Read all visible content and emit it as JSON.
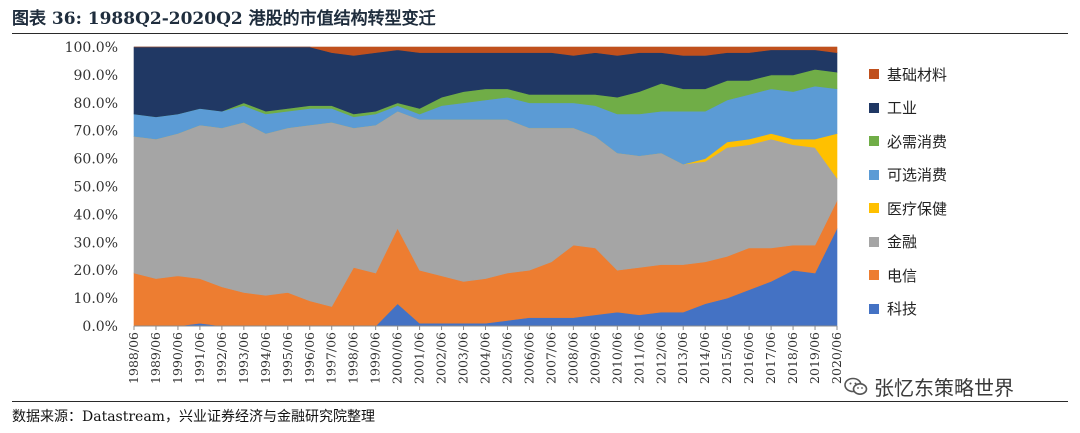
{
  "header": {
    "title": "图表 36:  1988Q2-2020Q2 港股的市值结构转型变迁"
  },
  "footer": {
    "source": "数据来源：Datastream，兴业证券经济与金融研究院整理"
  },
  "watermark": {
    "text": "张忆东策略世界",
    "icon": "wechat-icon"
  },
  "chart_data": {
    "type": "area",
    "stacked": true,
    "title": "1988Q2-2020Q2 港股的市值结构转型变迁",
    "ylim": [
      0,
      1
    ],
    "y_ticks": [
      "0.0%",
      "10.0%",
      "20.0%",
      "30.0%",
      "40.0%",
      "50.0%",
      "60.0%",
      "70.0%",
      "80.0%",
      "90.0%",
      "100.0%"
    ],
    "categories": [
      "1988/06",
      "1989/06",
      "1990/06",
      "1991/06",
      "1992/06",
      "1993/06",
      "1994/06",
      "1995/06",
      "1996/06",
      "1997/06",
      "1998/06",
      "1999/06",
      "2000/06",
      "2001/06",
      "2002/06",
      "2003/06",
      "2004/06",
      "2005/06",
      "2006/06",
      "2007/06",
      "2008/06",
      "2009/06",
      "2010/06",
      "2011/06",
      "2012/06",
      "2013/06",
      "2014/06",
      "2015/06",
      "2016/06",
      "2017/06",
      "2018/06",
      "2019/06",
      "2020/06"
    ],
    "legend_position": "right",
    "series": [
      {
        "name": "科技",
        "color": "#4472c4",
        "values": [
          0.0,
          0.0,
          0.0,
          0.01,
          0.0,
          0.0,
          0.0,
          0.0,
          0.0,
          0.0,
          0.0,
          0.0,
          0.08,
          0.01,
          0.01,
          0.01,
          0.01,
          0.02,
          0.03,
          0.03,
          0.03,
          0.04,
          0.05,
          0.04,
          0.05,
          0.05,
          0.08,
          0.1,
          0.13,
          0.16,
          0.2,
          0.19,
          0.35
        ]
      },
      {
        "name": "电信",
        "color": "#ed7d31",
        "values": [
          0.19,
          0.17,
          0.18,
          0.16,
          0.14,
          0.12,
          0.11,
          0.12,
          0.09,
          0.07,
          0.21,
          0.19,
          0.27,
          0.19,
          0.17,
          0.15,
          0.16,
          0.17,
          0.17,
          0.2,
          0.26,
          0.24,
          0.15,
          0.17,
          0.17,
          0.17,
          0.15,
          0.15,
          0.15,
          0.12,
          0.09,
          0.1,
          0.1
        ]
      },
      {
        "name": "金融",
        "color": "#a5a5a5",
        "values": [
          0.49,
          0.5,
          0.51,
          0.55,
          0.57,
          0.61,
          0.58,
          0.59,
          0.63,
          0.66,
          0.5,
          0.53,
          0.42,
          0.54,
          0.56,
          0.58,
          0.57,
          0.55,
          0.51,
          0.48,
          0.42,
          0.4,
          0.42,
          0.4,
          0.4,
          0.36,
          0.36,
          0.39,
          0.37,
          0.39,
          0.36,
          0.35,
          0.08
        ]
      },
      {
        "name": "医疗保健",
        "color": "#ffc000",
        "values": [
          0.0,
          0.0,
          0.0,
          0.0,
          0.0,
          0.0,
          0.0,
          0.0,
          0.0,
          0.0,
          0.0,
          0.0,
          0.0,
          0.0,
          0.0,
          0.0,
          0.0,
          0.0,
          0.0,
          0.0,
          0.0,
          0.0,
          0.0,
          0.0,
          0.0,
          0.0,
          0.01,
          0.02,
          0.02,
          0.02,
          0.02,
          0.03,
          0.16
        ]
      },
      {
        "name": "可选消费",
        "color": "#5b9bd5",
        "values": [
          0.08,
          0.08,
          0.07,
          0.06,
          0.06,
          0.06,
          0.07,
          0.06,
          0.06,
          0.05,
          0.04,
          0.04,
          0.02,
          0.02,
          0.05,
          0.06,
          0.07,
          0.08,
          0.09,
          0.09,
          0.09,
          0.11,
          0.14,
          0.15,
          0.15,
          0.19,
          0.17,
          0.15,
          0.16,
          0.16,
          0.17,
          0.19,
          0.16
        ]
      },
      {
        "name": "必需消费",
        "color": "#70ad47",
        "values": [
          0.0,
          0.0,
          0.0,
          0.0,
          0.0,
          0.01,
          0.01,
          0.01,
          0.01,
          0.01,
          0.01,
          0.01,
          0.01,
          0.02,
          0.03,
          0.04,
          0.04,
          0.03,
          0.03,
          0.03,
          0.03,
          0.04,
          0.06,
          0.08,
          0.1,
          0.08,
          0.08,
          0.07,
          0.05,
          0.05,
          0.06,
          0.06,
          0.06
        ]
      },
      {
        "name": "工业",
        "color": "#203864",
        "values": [
          0.24,
          0.25,
          0.24,
          0.22,
          0.23,
          0.2,
          0.23,
          0.22,
          0.21,
          0.19,
          0.21,
          0.21,
          0.19,
          0.2,
          0.16,
          0.14,
          0.13,
          0.13,
          0.15,
          0.15,
          0.14,
          0.15,
          0.15,
          0.14,
          0.11,
          0.12,
          0.12,
          0.1,
          0.1,
          0.09,
          0.09,
          0.07,
          0.07
        ]
      },
      {
        "name": "基础材料",
        "color": "#c0501d",
        "values": [
          0.0,
          0.0,
          0.0,
          0.0,
          0.0,
          0.0,
          0.0,
          0.0,
          0.0,
          0.02,
          0.03,
          0.02,
          0.01,
          0.02,
          0.02,
          0.02,
          0.02,
          0.02,
          0.02,
          0.02,
          0.03,
          0.02,
          0.03,
          0.02,
          0.02,
          0.03,
          0.03,
          0.02,
          0.02,
          0.01,
          0.01,
          0.01,
          0.02
        ]
      }
    ],
    "legend_order": [
      "基础材料",
      "工业",
      "必需消费",
      "可选消费",
      "医疗保健",
      "金融",
      "电信",
      "科技"
    ]
  }
}
